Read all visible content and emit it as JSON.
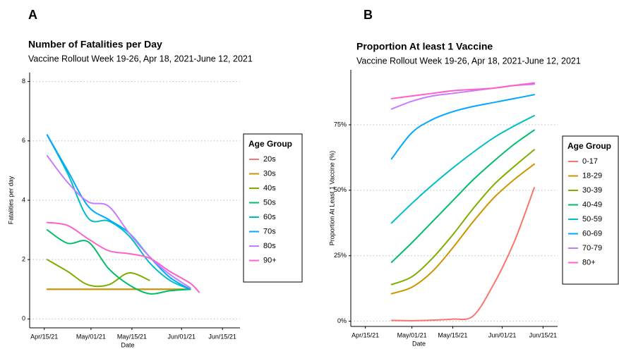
{
  "chart_data": [
    {
      "type": "line",
      "panel": "A",
      "title": "Number of Fatalities per Day",
      "subtitle": "Vaccine Rollout Week 19-26, Apr 18, 2021-June 12, 2021",
      "x_label": "Date",
      "y_label": "Fatalities per day",
      "x": [
        "2021-04-16",
        "2021-04-23",
        "2021-04-30",
        "2021-05-07",
        "2021-05-14",
        "2021-05-21",
        "2021-05-28",
        "2021-06-04",
        "2021-06-07"
      ],
      "xlim": [
        "2021-04-10",
        "2021-06-21"
      ],
      "xticks": [
        {
          "value": "2021-04-15",
          "label": "Apr/15/21"
        },
        {
          "value": "2021-05-01",
          "label": "May/01/21"
        },
        {
          "value": "2021-05-15",
          "label": "May/15/21"
        },
        {
          "value": "2021-06-01",
          "label": "Jun/01/21"
        },
        {
          "value": "2021-06-15",
          "label": "Jun/15/21"
        }
      ],
      "ylim": [
        -0.3,
        8.3
      ],
      "yticks": [
        0,
        2,
        4,
        6,
        8
      ],
      "grid": true,
      "legend_title": "Age Group",
      "legend": "right",
      "series": [
        {
          "name": "20s",
          "color": "#F8766D",
          "values": [
            1,
            1,
            1,
            1,
            1,
            1,
            1,
            1,
            null
          ]
        },
        {
          "name": "30s",
          "color": "#CD9600",
          "values": [
            1,
            1,
            1,
            1,
            1,
            1,
            1,
            1,
            null
          ]
        },
        {
          "name": "40s",
          "color": "#7CAE00",
          "values": [
            2.0,
            1.6,
            1.15,
            1.15,
            1.55,
            1.3,
            null,
            null,
            null
          ]
        },
        {
          "name": "50s",
          "color": "#00BE67",
          "values": [
            3.0,
            2.55,
            2.6,
            1.7,
            1.15,
            0.85,
            0.95,
            1.0,
            null
          ]
        },
        {
          "name": "60s",
          "color": "#00BFC4",
          "values": [
            6.2,
            4.9,
            3.4,
            3.3,
            2.8,
            1.9,
            1.3,
            1.0,
            null
          ]
        },
        {
          "name": "70s",
          "color": "#00A9FF",
          "values": [
            6.2,
            5.0,
            3.8,
            3.35,
            2.9,
            2.1,
            1.4,
            1.0,
            null
          ]
        },
        {
          "name": "80s",
          "color": "#C77CFF",
          "values": [
            5.5,
            4.6,
            3.95,
            3.8,
            2.9,
            2.1,
            1.5,
            1.05,
            null
          ]
        },
        {
          "name": "90+",
          "color": "#FF61CC",
          "values": [
            3.25,
            3.15,
            2.7,
            2.3,
            2.2,
            2.05,
            1.6,
            1.2,
            0.9
          ]
        }
      ]
    },
    {
      "type": "line",
      "panel": "B",
      "title": "Proportion At least 1 Vaccine",
      "subtitle": "Vaccine Rollout Week 19-26, Apr 18, 2021-June 12, 2021",
      "x_label": "Date",
      "y_label": "Proportion At Least 1 Vaccine (%)",
      "x": [
        "2021-04-24",
        "2021-05-01",
        "2021-05-08",
        "2021-05-15",
        "2021-05-22",
        "2021-05-29",
        "2021-06-05",
        "2021-06-12"
      ],
      "xlim": [
        "2021-04-10",
        "2021-06-20"
      ],
      "xticks": [
        {
          "value": "2021-04-15",
          "label": "Apr/15/21"
        },
        {
          "value": "2021-05-01",
          "label": "May/01/21"
        },
        {
          "value": "2021-05-15",
          "label": "May/15/21"
        },
        {
          "value": "2021-06-01",
          "label": "Jun/01/21"
        },
        {
          "value": "2021-06-15",
          "label": "Jun/15/21"
        }
      ],
      "ylim": [
        -2,
        96
      ],
      "yticks": [
        {
          "value": 0,
          "label": "0%"
        },
        {
          "value": 25,
          "label": "25%"
        },
        {
          "value": 50,
          "label": "50%"
        },
        {
          "value": 75,
          "label": "75%"
        }
      ],
      "grid": true,
      "legend_title": "Age Group",
      "legend": "right",
      "series": [
        {
          "name": "0-17",
          "color": "#F8766D",
          "values": [
            0.3,
            0.2,
            0.4,
            0.8,
            2,
            14,
            30,
            51
          ]
        },
        {
          "name": "18-29",
          "color": "#CD9600",
          "values": [
            10.5,
            13,
            19,
            28,
            38,
            47,
            54,
            60
          ]
        },
        {
          "name": "30-39",
          "color": "#7CAE00",
          "values": [
            14,
            17,
            24,
            33,
            43,
            52,
            59,
            65.5
          ]
        },
        {
          "name": "40-49",
          "color": "#00BE67",
          "values": [
            22.5,
            30,
            38,
            46,
            54,
            61,
            67.5,
            73
          ]
        },
        {
          "name": "50-59",
          "color": "#00BFC4",
          "values": [
            37.5,
            45,
            52,
            58.5,
            64.5,
            70,
            74.5,
            78.5
          ]
        },
        {
          "name": "60-69",
          "color": "#00A9FF",
          "values": [
            62,
            72,
            77,
            80,
            82,
            83.5,
            85,
            86.5
          ]
        },
        {
          "name": "70-79",
          "color": "#C77CFF",
          "values": [
            81,
            84,
            86,
            87,
            88,
            89,
            90,
            90.5
          ]
        },
        {
          "name": "80+",
          "color": "#FF61CC",
          "values": [
            85,
            86,
            87,
            88,
            88.5,
            89,
            90,
            91
          ]
        }
      ]
    }
  ]
}
